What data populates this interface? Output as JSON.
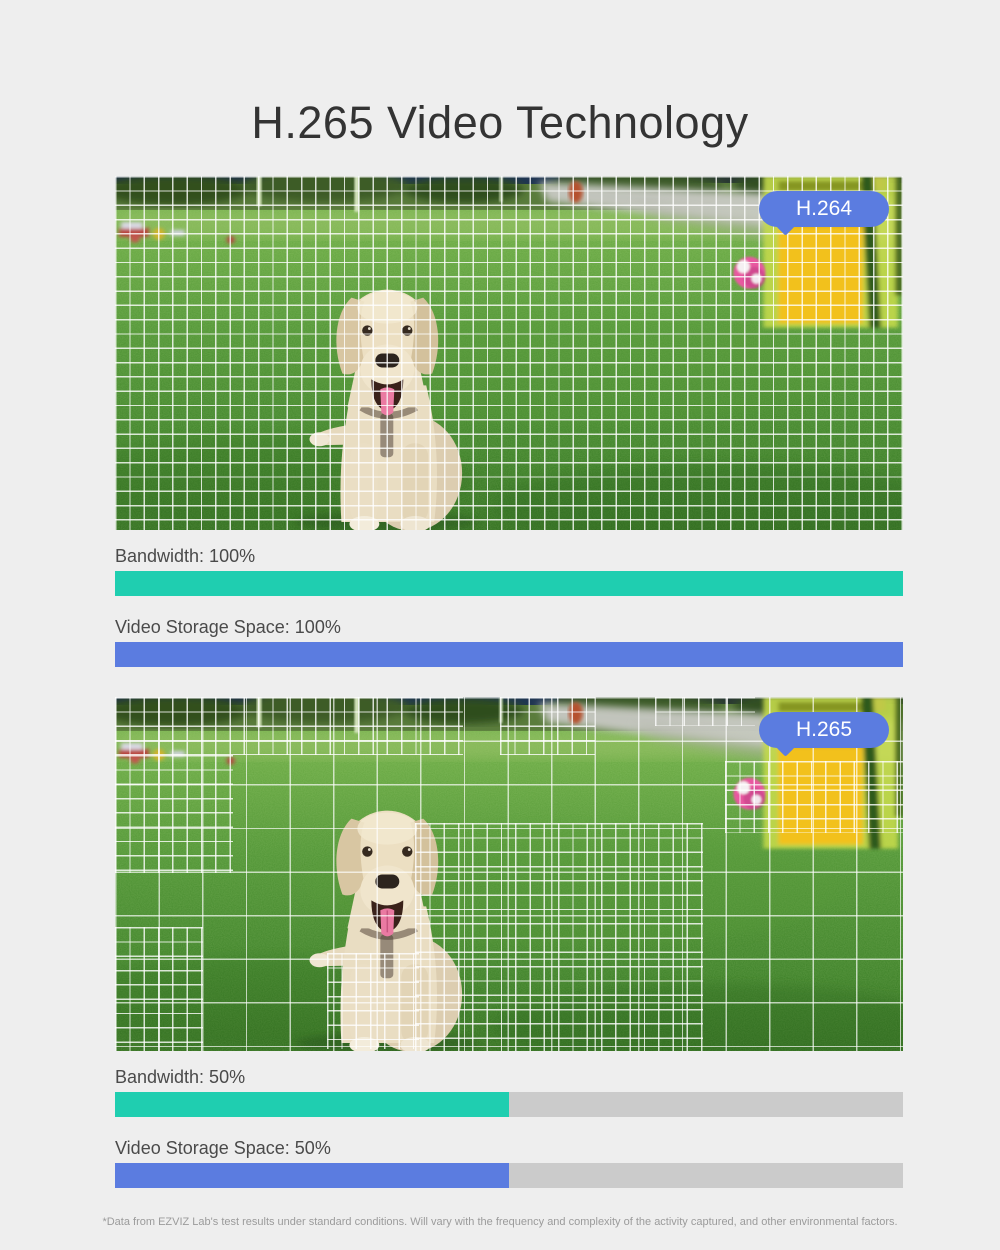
{
  "page": {
    "title": "H.265 Video Technology",
    "footnote": "*Data from EZVIZ Lab's test results under standard conditions. Will vary with the frequency and complexity of the activity captured, and other environmental factors."
  },
  "colors": {
    "page_bg": "#eeeeee",
    "title_text": "#333333",
    "label_text": "#4a4a4a",
    "footnote_text": "#9b9b9b",
    "accent_teal": "#1fceb0",
    "accent_blue": "#5b7ce0",
    "bar_track": "#cbcbcb",
    "badge_text": "#ffffff",
    "grid_line": "#ffffff"
  },
  "panels": [
    {
      "badge": "H.264",
      "photo_subject": "yellow labrador on lawn, uniform fine encoding grid over entire frame",
      "metrics": [
        {
          "label": "Bandwidth: 100%",
          "value_pct": 100,
          "color": "teal"
        },
        {
          "label": "Video Storage Space: 100%",
          "value_pct": 100,
          "color": "blue"
        }
      ]
    },
    {
      "badge": "H.265",
      "photo_subject": "yellow labrador on lawn, adaptive grid: fine blocks only on moving subject, coarse elsewhere",
      "metrics": [
        {
          "label": "Bandwidth: 50%",
          "value_pct": 50,
          "color": "teal"
        },
        {
          "label": "Video Storage Space: 50%",
          "value_pct": 50,
          "color": "blue"
        }
      ]
    }
  ],
  "chart_data": {
    "type": "bar",
    "title": "H.265 Video Technology",
    "categories": [
      "Bandwidth",
      "Video Storage Space"
    ],
    "series": [
      {
        "name": "H.264",
        "values": [
          100,
          100
        ]
      },
      {
        "name": "H.265",
        "values": [
          50,
          50
        ]
      }
    ],
    "unit": "%",
    "xlim": [
      0,
      100
    ],
    "legend_position": "badge-on-image",
    "grid": false
  }
}
